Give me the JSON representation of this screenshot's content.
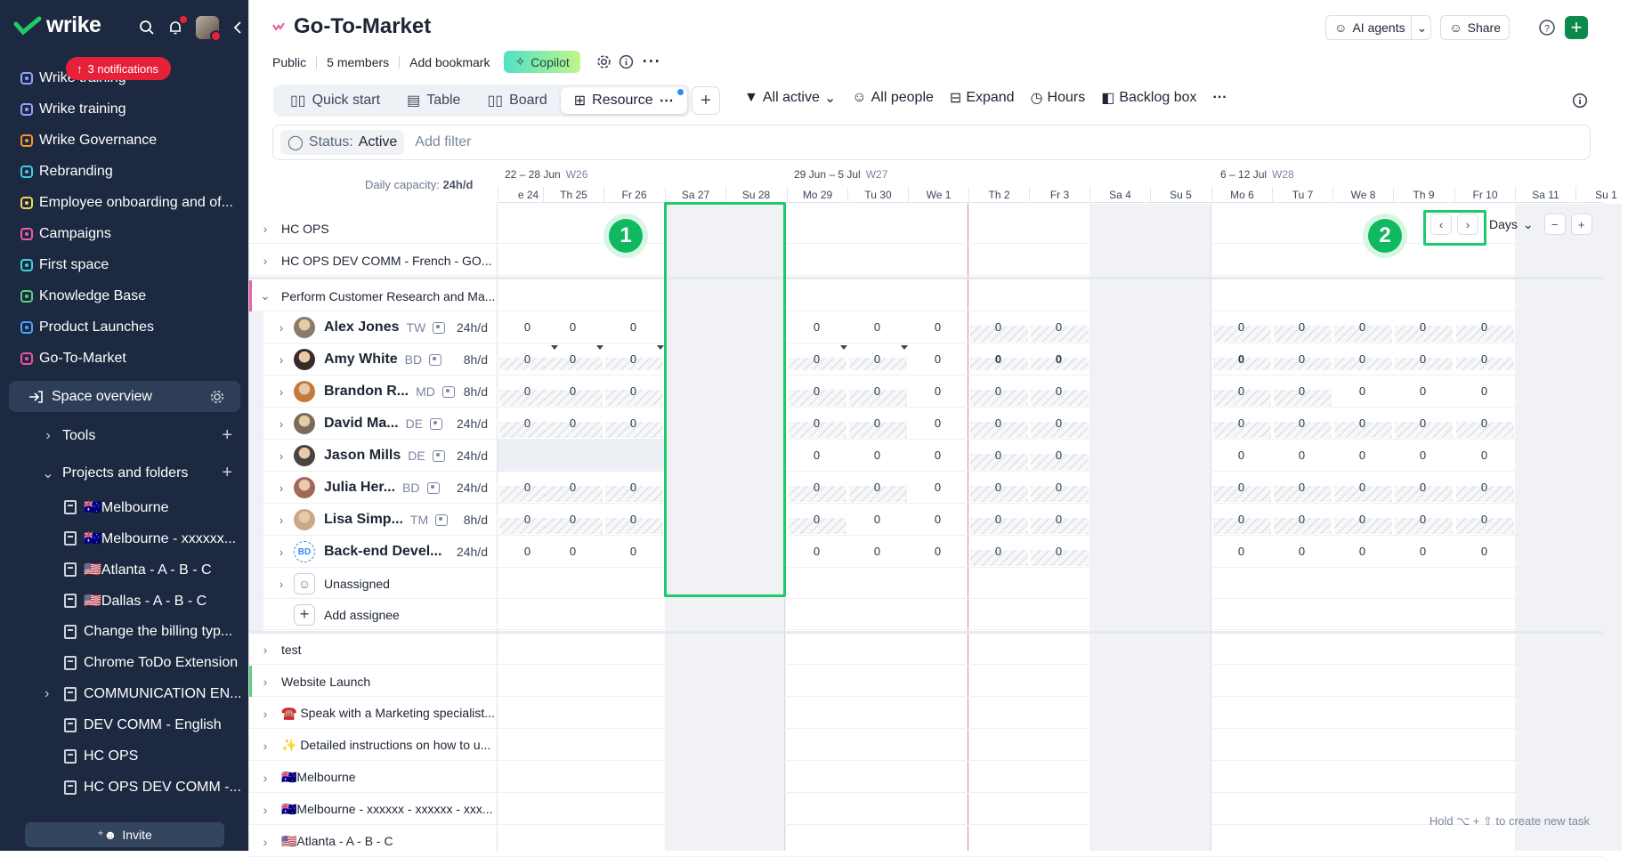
{
  "sidebar": {
    "logo": "wrike",
    "notifications": "3 notifications",
    "items": [
      {
        "label": "Wrike training",
        "icon": "hierarchy-icon",
        "color": "#8fa2ff"
      },
      {
        "label": "Wrike training",
        "icon": "hierarchy-icon",
        "color": "#8fa2ff"
      },
      {
        "label": "Wrike Governance",
        "icon": "table-icon",
        "color": "#f29a2e"
      },
      {
        "label": "Rebranding",
        "icon": "cube-icon",
        "color": "#3fd0e0"
      },
      {
        "label": "Employee onboarding and of...",
        "icon": "person-icon",
        "color": "#f4d35e"
      },
      {
        "label": "Campaigns",
        "icon": "rocket-icon",
        "color": "#ef5da8"
      },
      {
        "label": "First space",
        "icon": "globe-icon",
        "color": "#3fd0e0"
      },
      {
        "label": "Knowledge Base",
        "icon": "graduation-icon",
        "color": "#5dcf7a"
      },
      {
        "label": "Product Launches",
        "icon": "rocket-icon",
        "color": "#4aa3ff"
      },
      {
        "label": "Go-To-Market",
        "icon": "wrike-mark-icon",
        "color": "#e8579b"
      }
    ],
    "space_overview": "Space overview",
    "tools": "Tools",
    "projects_and_folders": "Projects and folders",
    "folders": [
      "🇦🇺Melbourne",
      "🇦🇺Melbourne - xxxxxx...",
      "🇺🇸Atlanta - A - B - C",
      "🇺🇸Dallas - A - B - C",
      "Change the billing typ...",
      "Chrome ToDo Extension",
      "COMMUNICATION EN...",
      "DEV COMM - English",
      "HC OPS",
      "HC OPS DEV COMM -..."
    ],
    "invite": "Invite"
  },
  "header": {
    "title": "Go-To-Market",
    "visibility": "Public",
    "members": "5 members",
    "bookmark": "Add bookmark",
    "copilot": "Copilot",
    "ai_agents": "AI agents",
    "share": "Share"
  },
  "tabs": [
    "Quick start",
    "Table",
    "Board",
    "Resource"
  ],
  "toolbar": {
    "all_active": "All active",
    "all_people": "All people",
    "expand": "Expand",
    "hours": "Hours",
    "backlog": "Backlog box"
  },
  "filter": {
    "status_key": "Status:",
    "status_val": "Active",
    "add_filter": "Add filter"
  },
  "timeline": {
    "capacity_label": "Daily capacity:",
    "capacity_val": "24h/d",
    "weeks": [
      {
        "range": "22 – 28 Jun",
        "wk": "W26"
      },
      {
        "range": "29 Jun – 5 Jul",
        "wk": "W27"
      },
      {
        "range": "6 – 12 Jul",
        "wk": "W28"
      }
    ],
    "days": [
      "e 24",
      "Th 25",
      "Fr 26",
      "Sa 27",
      "Su 28",
      "Mo 29",
      "Tu 30",
      "We 1",
      "Th 2",
      "Fr 3",
      "Sa 4",
      "Su 5",
      "Mo 6",
      "Tu 7",
      "We 8",
      "Th 9",
      "Fr 10",
      "Sa 11",
      "Su 1"
    ],
    "zoom": "Days"
  },
  "groups_top": [
    "HC OPS",
    "HC OPS DEV COMM - French - GO..."
  ],
  "expanded_group": "Perform Customer Research and Ma...",
  "people": [
    {
      "name": "Alex Jones",
      "init": "TW",
      "hours": "24h/d",
      "avatar": "#8a7a6a"
    },
    {
      "name": "Amy White",
      "init": "BD",
      "hours": "8h/d",
      "avatar": "#3a2a28"
    },
    {
      "name": "Brandon R...",
      "init": "MD",
      "hours": "8h/d",
      "avatar": "#c47a3a"
    },
    {
      "name": "David Ma...",
      "init": "DE",
      "hours": "24h/d",
      "avatar": "#7a6a5a"
    },
    {
      "name": "Jason Mills",
      "init": "DE",
      "hours": "24h/d",
      "avatar": "#4a4440"
    },
    {
      "name": "Julia Her...",
      "init": "BD",
      "hours": "24h/d",
      "avatar": "#a0685a"
    },
    {
      "name": "Lisa Simp...",
      "init": "TM",
      "hours": "8h/d",
      "avatar": "#c9a88a"
    },
    {
      "name": "Back-end Devel...",
      "init": "",
      "hours": "24h/d",
      "avatar": "BD"
    }
  ],
  "unassigned": "Unassigned",
  "add_assignee": "Add assignee",
  "groups_bottom": [
    "test",
    "Website Launch",
    "☎️ Speak with a Marketing specialist...",
    "✨ Detailed instructions on how to u...",
    "🇦🇺Melbourne",
    "🇦🇺Melbourne - xxxxxx - xxxxxx - xxx...",
    "🇺🇸Atlanta - A - B - C"
  ],
  "cell_value": "0",
  "annotations": [
    "1",
    "2"
  ],
  "hint": "Hold ⌥ + ⇧ to create new task"
}
